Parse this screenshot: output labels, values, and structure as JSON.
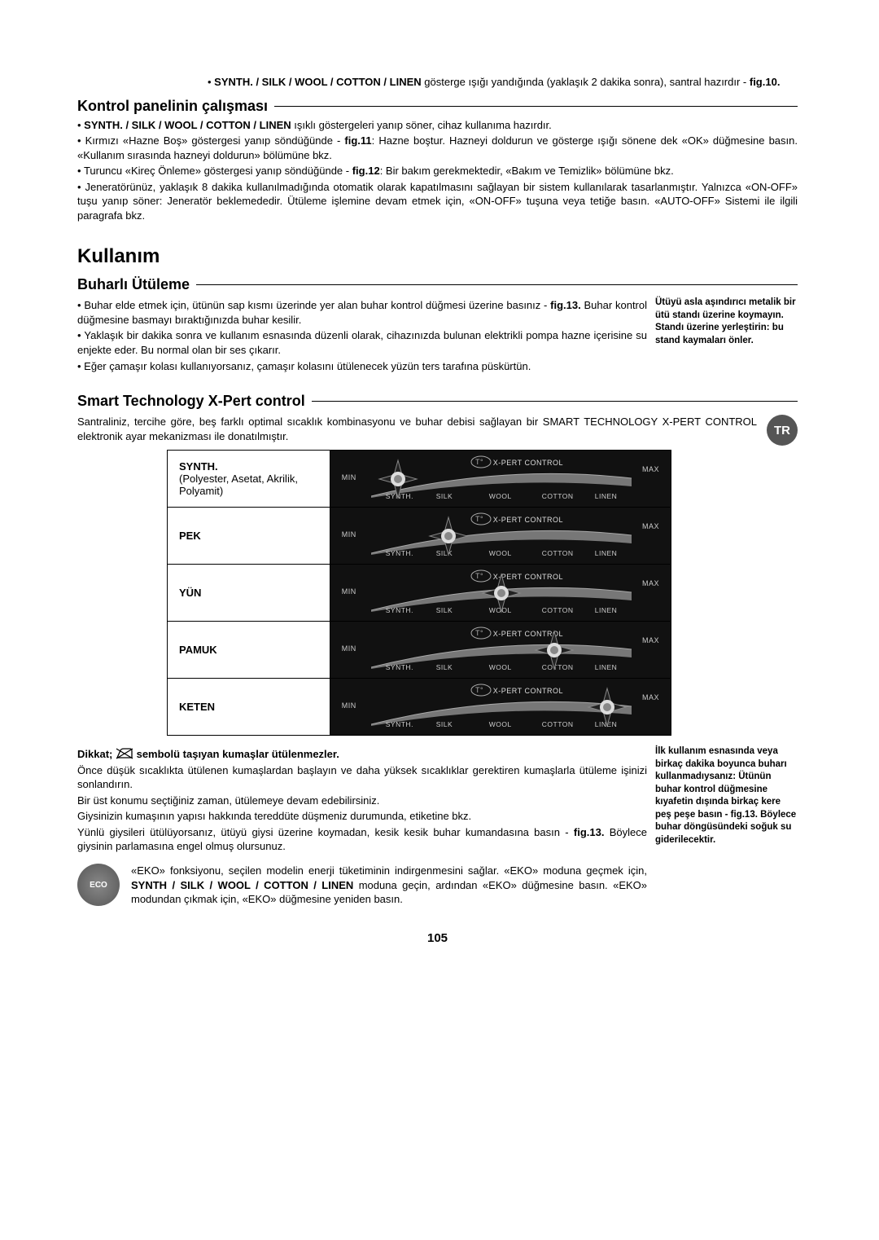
{
  "top_bullet": {
    "label": "SYNTH. / SILK / WOOL / COTTON / LINEN",
    "text": " gösterge ışığı yandığında (yaklaşık 2 dakika sonra), santral hazırdır - ",
    "fig": "fig.10."
  },
  "section1": {
    "title": "Kontrol panelinin çalışması",
    "b1a": "SYNTH. / SILK / WOOL / COTTON / LINEN",
    "b1b": " ışıklı göstergeleri yanıp söner, cihaz kullanıma hazırdır.",
    "b2a": "Kırmızı «Hazne Boş» göstergesi yanıp söndüğünde - ",
    "b2fig": "fig.11",
    "b2b": ": Hazne boştur. Hazneyi doldurun ve gösterge ışığı sönene dek «OK» düğmesine basın. «Kullanım sırasında hazneyi doldurun» bölümüne bkz.",
    "b3a": "Turuncu «Kireç Önleme» göstergesi yanıp söndüğünde - ",
    "b3fig": "fig.12",
    "b3b": ": Bir bakım gerekmektedir, «Bakım ve Temizlik» bölümüne bkz.",
    "b4": "Jeneratörünüz, yaklaşık 8 dakika kullanılmadığında otomatik olarak kapatılmasını sağlayan bir sistem kullanılarak tasarlanmıştır. Yalnızca «ON-OFF» tuşu yanıp söner: Jeneratör beklemededir. Ütüleme işlemine devam etmek için, «ON-OFF» tuşuna veya tetiğe basın. «AUTO-OFF» Sistemi ile ilgili paragrafa bkz."
  },
  "kullanim": "Kullanım",
  "buharli": {
    "title": "Buharlı Ütüleme",
    "b1a": "Buhar elde etmek için, ütünün sap kısmı üzerinde yer alan buhar kontrol düğmesi üzerine basınız - ",
    "b1fig": "fig.13.",
    "b1b": " Buhar kontrol düğmesine basmayı bıraktığınızda buhar kesilir.",
    "b2": "Yaklaşık bir dakika sonra ve kullanım esnasında düzenli olarak, cihazınızda bulunan elektrikli pompa hazne içerisine su enjekte eder. Bu normal olan bir ses çıkarır.",
    "b3": "Eğer çamaşır kolası kullanıyorsanız, çamaşır kolasını ütülenecek yüzün ters tarafına püskürtün.",
    "side": "Ütüyü asla aşındırıcı metalik bir ütü standı üzerine koymayın. Standı üzerine yerleştirin: bu stand kaymaları önler."
  },
  "smart": {
    "title": "Smart Technology X-Pert control",
    "intro": "Santraliniz, tercihe göre, beş farklı optimal sıcaklık kombinasyonu ve buhar debisi sağlayan bir SMART TECHNOLOGY X-PERT CONTROL elektronik ayar mekanizması ile donatılmıştır.",
    "tr_tab": "TR"
  },
  "fabrics": {
    "scale_labels": [
      "SYNTH.",
      "SILK",
      "WOOL",
      "COTTON",
      "LINEN"
    ],
    "min": "MIN",
    "max": "MAX",
    "xpert": "X-PERT CONTROL",
    "rows": [
      {
        "label_main": "SYNTH.",
        "label_sub": "(Polyester, Asetat, Akrilik, Polyamit)",
        "pos": 0
      },
      {
        "label_main": "PEK",
        "label_sub": "",
        "pos": 1
      },
      {
        "label_main": "YÜN",
        "label_sub": "",
        "pos": 2
      },
      {
        "label_main": "PAMUK",
        "label_sub": "",
        "pos": 3
      },
      {
        "label_main": "KETEN",
        "label_sub": "",
        "pos": 4
      }
    ]
  },
  "dikkat": {
    "pre": "Dikkat; ",
    "post": " sembolü taşıyan kumaşlar ütülenmezler.",
    "p1": "Önce düşük sıcaklıkta ütülenen kumaşlardan başlayın ve daha yüksek sıcaklıklar gerektiren kumaşlarla ütüleme işinizi sonlandırın.",
    "p2": "Bir üst konumu seçtiğiniz zaman, ütülemeye devam edebilirsiniz.",
    "p3": "Giysinizin kumaşının yapısı hakkında tereddüte düşmeniz durumunda, etiketine bkz.",
    "p4a": "Yünlü giysileri ütülüyorsanız, ütüyü giysi üzerine koymadan, kesik kesik buhar kumandasına basın - ",
    "p4fig": "fig.13.",
    "p4b": " Böylece giysinin parlamasına engel olmuş olursunuz.",
    "side": "İlk kullanım esnasında veya birkaç dakika boyunca buharı kullanmadıysanız: Ütünün buhar kontrol düğmesine kıyafetin dışında birkaç kere peş peşe basın - fig.13. Böylece buhar döngüsündeki soğuk su giderilecektir."
  },
  "eco": {
    "badge": "ECO",
    "t1": "«EKO» fonksiyonu, seçilen modelin enerji tüketiminin indirgenmesini sağlar. «EKO» moduna geçmek için, ",
    "t_bold": "SYNTH / SILK / WOOL / COTTON / LINEN",
    "t2": " moduna geçin, ardından «EKO» düğmesine basın. «EKO» modundan çıkmak için, «EKO» düğmesine yeniden basın."
  },
  "page": "105"
}
